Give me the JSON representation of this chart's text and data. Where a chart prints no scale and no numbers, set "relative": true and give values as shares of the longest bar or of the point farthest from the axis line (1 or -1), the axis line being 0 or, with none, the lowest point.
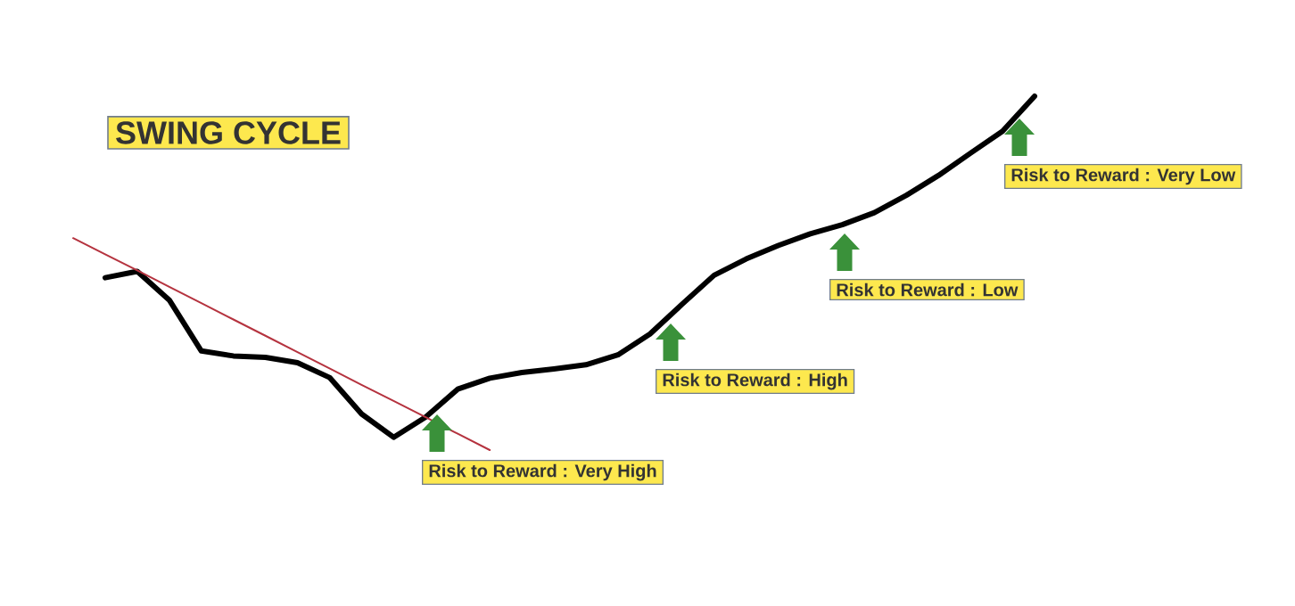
{
  "chart_data": {
    "type": "line",
    "title": "SWING CYCLE",
    "relative": true,
    "categories": [
      null,
      null,
      null,
      null,
      null,
      null,
      null,
      null,
      null,
      null,
      null,
      null,
      null,
      null,
      null,
      null,
      null,
      null,
      null,
      null,
      null,
      null,
      null,
      null,
      null,
      null,
      null,
      null,
      null,
      null,
      null
    ],
    "series": [
      {
        "color": "#000000",
        "values": [
          null,
          0.487,
          0.505,
          0.424,
          0.28,
          0.266,
          0.262,
          0.247,
          0.205,
          0.102,
          0.036,
          0.093,
          0.172,
          0.203,
          0.219,
          0.229,
          0.241,
          0.269,
          0.328,
          0.412,
          0.494,
          0.54,
          0.578,
          0.611,
          0.637,
          0.671,
          0.72,
          0.776,
          0.839,
          0.901,
          1.0
        ]
      },
      {
        "color": "#b5333f",
        "values": [
          0.599,
          0.553,
          0.508,
          0.461,
          0.415,
          0.369,
          0.323,
          0.277,
          0.231,
          0.184,
          0.139,
          0.093,
          0.046,
          0.0,
          null,
          null,
          null,
          null,
          null,
          null,
          null,
          null,
          null,
          null,
          null,
          null,
          null,
          null,
          null,
          null,
          null
        ]
      }
    ],
    "annotations": [
      "Risk to Reward : Very High",
      "Risk to Reward : High",
      "Risk to Reward : Low",
      "Risk to Reward : Very Low"
    ]
  }
}
